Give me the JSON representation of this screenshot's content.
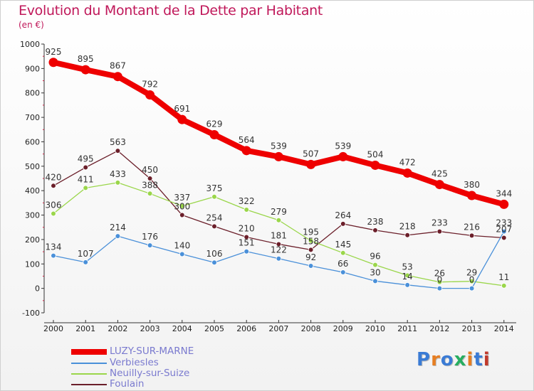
{
  "chart_data": {
    "type": "line",
    "title": "Evolution du Montant de la Dette par Habitant",
    "subtitle": "(en €)",
    "x": [
      "2000",
      "2001",
      "2002",
      "2003",
      "2004",
      "2005",
      "2006",
      "2007",
      "2008",
      "2009",
      "2010",
      "2011",
      "2012",
      "2013",
      "2014"
    ],
    "ylim": [
      -100,
      1000
    ],
    "yticks": [
      -100,
      0,
      100,
      200,
      300,
      400,
      500,
      600,
      700,
      800,
      900,
      1000
    ],
    "grid": false,
    "legend_position": "bottom-left",
    "series": [
      {
        "name": "LUZY-SUR-MARNE",
        "color": "#ee0000",
        "values": [
          925,
          895,
          867,
          792,
          691,
          629,
          564,
          539,
          507,
          539,
          504,
          472,
          425,
          380,
          344
        ],
        "labels": [
          "925",
          "895",
          "867",
          "792",
          "691",
          "629",
          "564",
          "539",
          "507",
          "539",
          "504",
          "472",
          "425",
          "380",
          "344"
        ]
      },
      {
        "name": "Verbiesles",
        "color": "#4a90d9",
        "values": [
          134,
          107,
          214,
          176,
          140,
          106,
          151,
          122,
          92,
          66,
          30,
          14,
          0,
          0,
          233
        ],
        "labels": [
          "134",
          "107",
          "214",
          "176",
          "140",
          "106",
          "151",
          "122",
          "92",
          "66",
          "30",
          "14",
          "0",
          "0",
          "233"
        ]
      },
      {
        "name": "Neuilly-sur-Suize",
        "color": "#9ad64a",
        "values": [
          306,
          411,
          433,
          388,
          337,
          375,
          322,
          279,
          195,
          145,
          96,
          53,
          26,
          29,
          11
        ],
        "labels": [
          "306",
          "411",
          "433",
          "388",
          "337",
          "375",
          "322",
          "279",
          "195",
          "145",
          "96",
          "53",
          "26",
          "29",
          "11"
        ]
      },
      {
        "name": "Foulain",
        "color": "#6b1f2a",
        "values": [
          420,
          495,
          563,
          450,
          300,
          254,
          210,
          181,
          158,
          264,
          238,
          218,
          233,
          216,
          207
        ],
        "labels": [
          "420",
          "495",
          "563",
          "450",
          "300",
          "254",
          "210",
          "181",
          "158",
          "264",
          "238",
          "218",
          "233",
          "216",
          "207"
        ]
      }
    ]
  },
  "logo": {
    "text": "Proxiti"
  }
}
